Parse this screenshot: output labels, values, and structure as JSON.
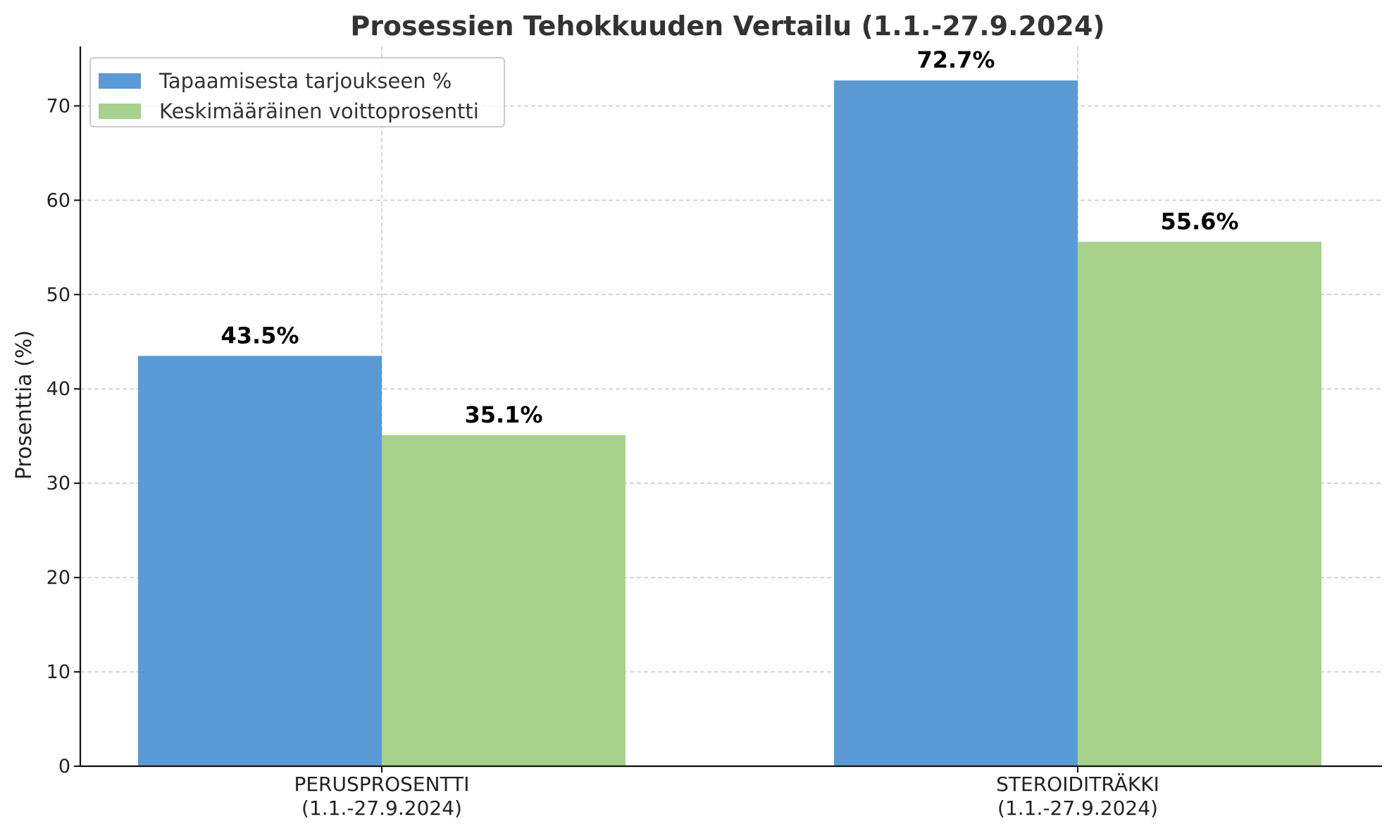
{
  "chart_data": {
    "type": "bar",
    "title": "Prosessien Tehokkuuden Vertailu (1.1.-27.9.2024)",
    "xlabel": "",
    "ylabel": "Prosenttia (%)",
    "ylim": [
      0,
      76.3
    ],
    "yticks": [
      0,
      10,
      20,
      30,
      40,
      50,
      60,
      70
    ],
    "categories": [
      [
        "PERUSPROSENTTI",
        "(1.1.-27.9.2024)"
      ],
      [
        "STEROIDITRÄKKI",
        "(1.1.-27.9.2024)"
      ]
    ],
    "series": [
      {
        "name": "Tapaamisesta tarjoukseen %",
        "color": "#5b9bd5",
        "values": [
          43.5,
          72.7
        ],
        "labels": [
          "43.5%",
          "72.7%"
        ]
      },
      {
        "name": "Keskimääräinen voittoprosentti",
        "color": "#a9d18e",
        "values": [
          35.1,
          55.6
        ],
        "labels": [
          "35.1%",
          "55.6%"
        ]
      }
    ],
    "grid": true,
    "legend_position": "top-left"
  }
}
